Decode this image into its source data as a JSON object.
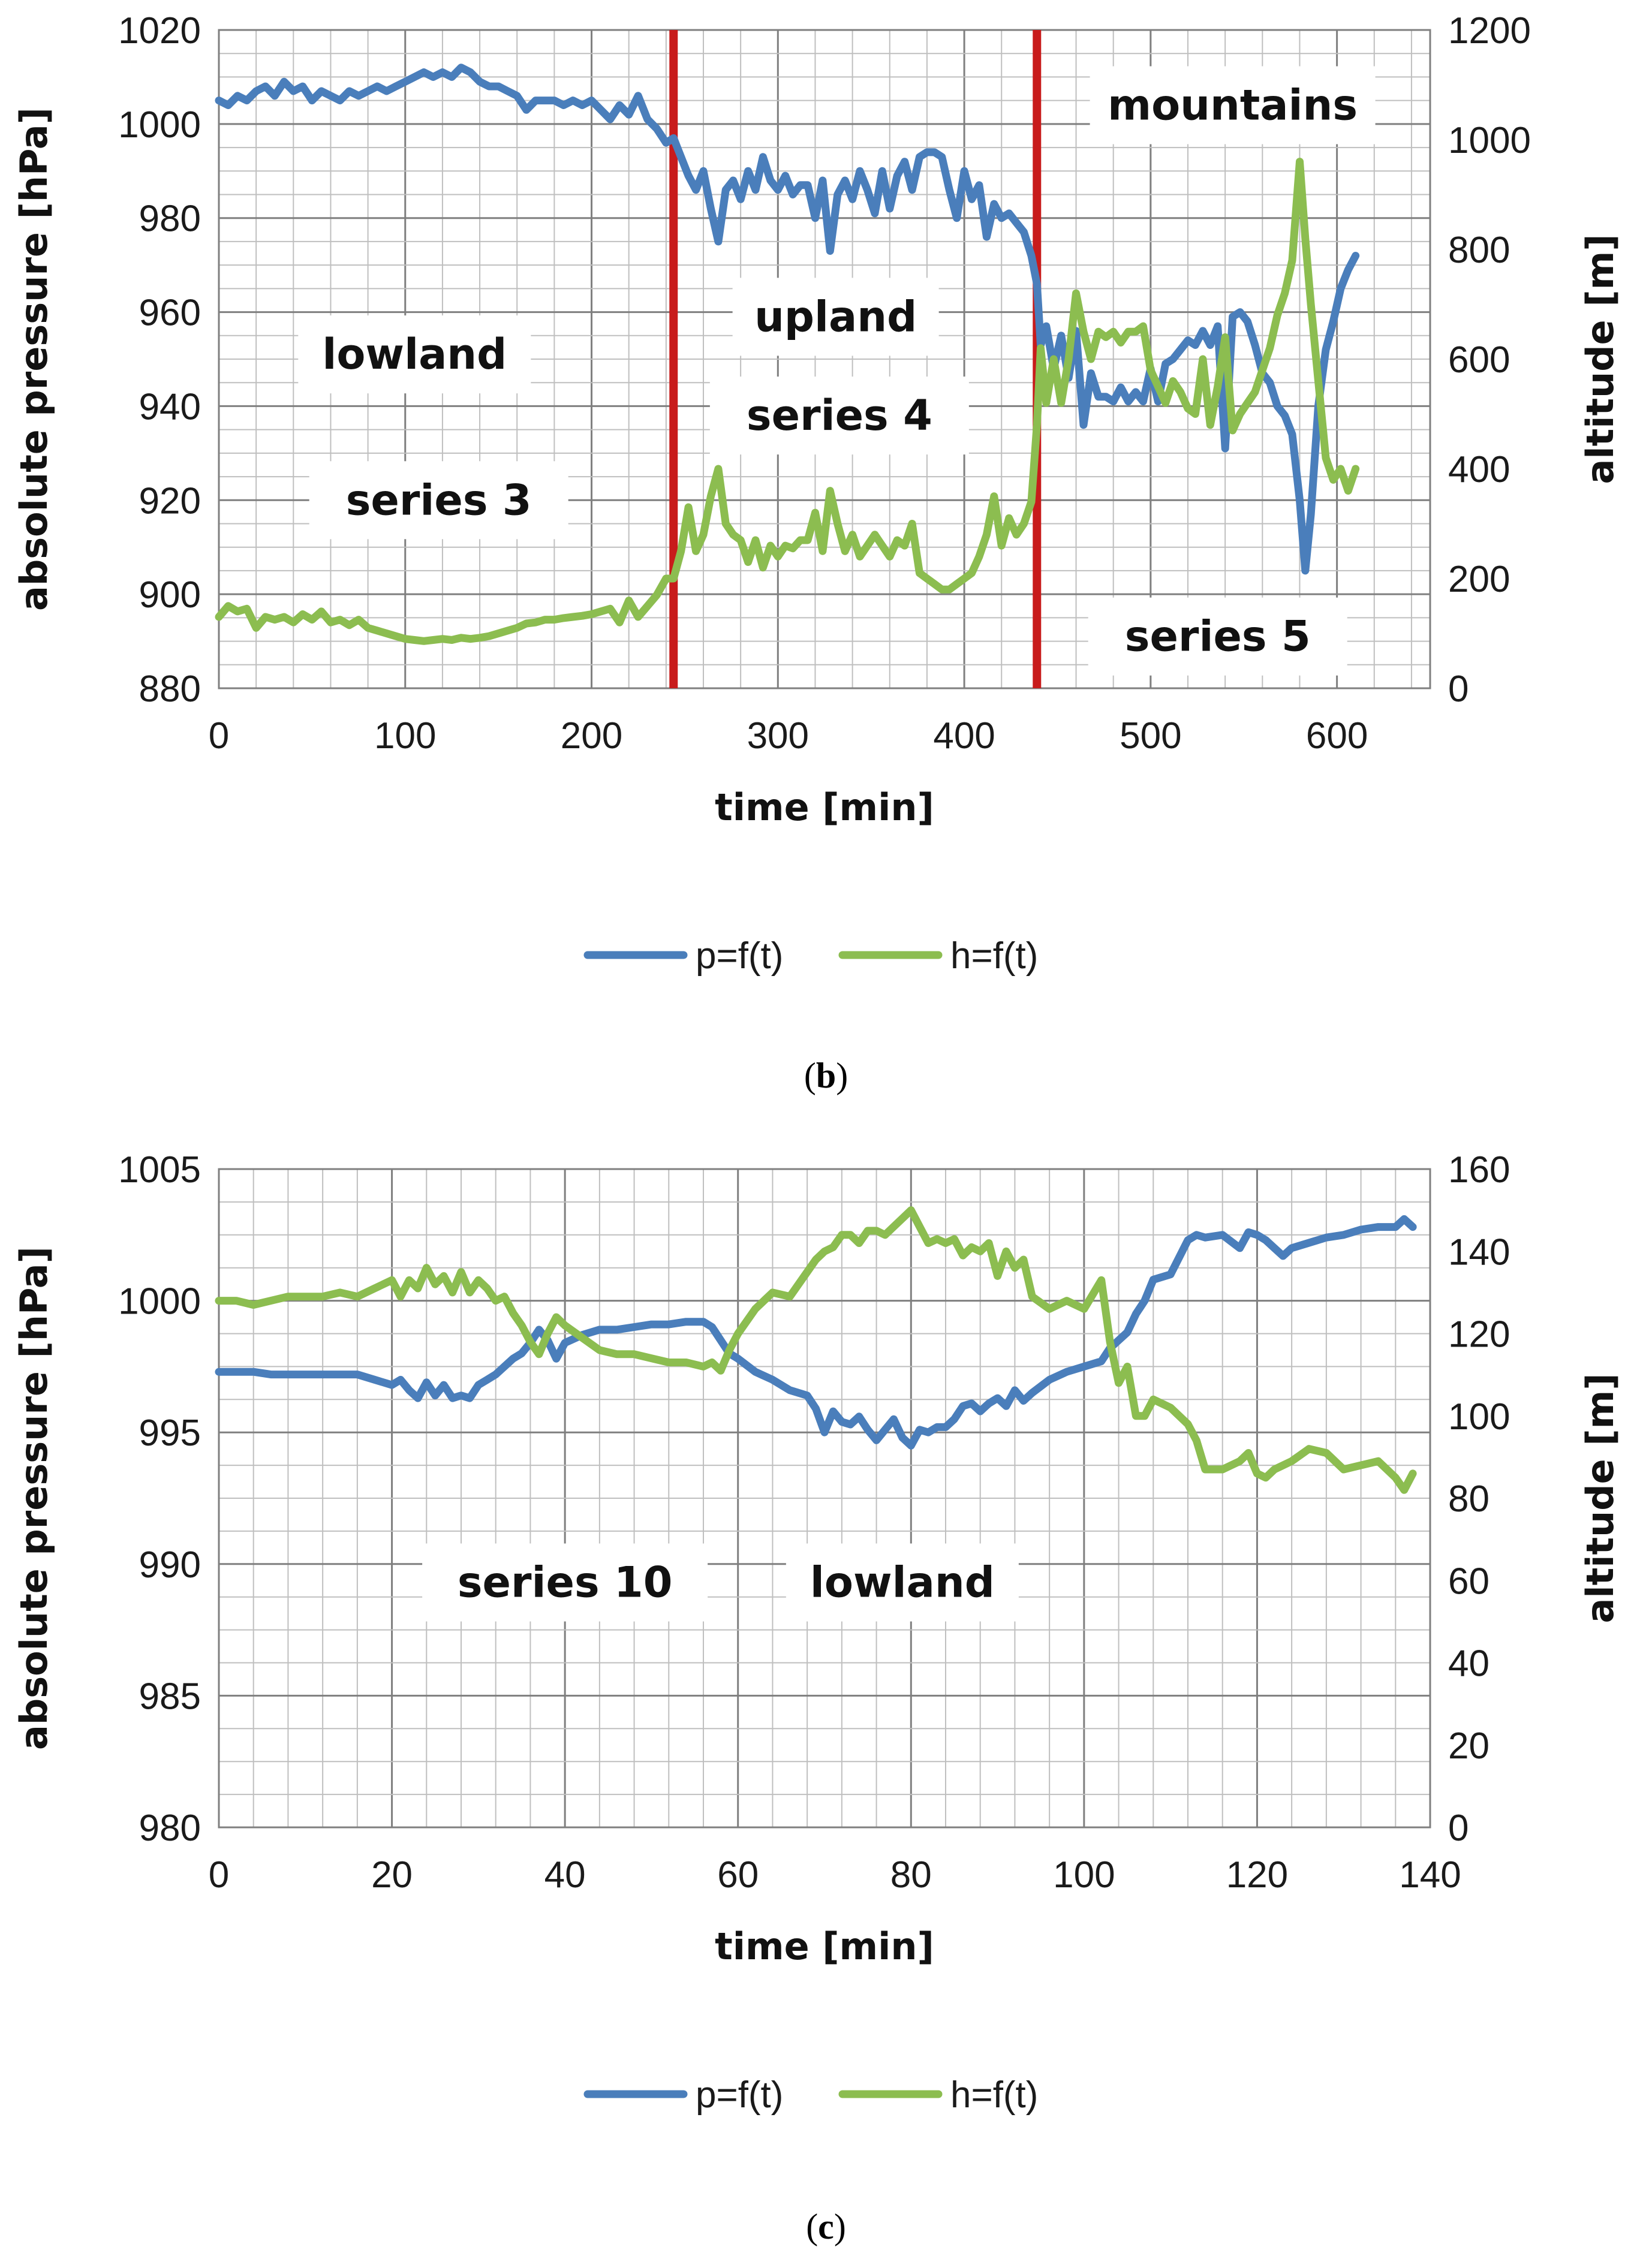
{
  "colors": {
    "pressure": "#4a7ebb",
    "altitude": "#8cbd50",
    "divider": "#c81b1b",
    "grid_major": "#7f7f7f",
    "grid_minor": "#bfbfbf",
    "label_box": "#ffffff"
  },
  "chart_data": [
    {
      "id": "b",
      "type": "line",
      "caption": "b",
      "xlabel": "time [min]",
      "ylabel_left": "absolute pressure [hPa]",
      "ylabel_right": "altitude [m]",
      "xlim": [
        0,
        650
      ],
      "xticks": [
        0,
        100,
        200,
        300,
        400,
        500,
        600
      ],
      "ylim_left": [
        880,
        1020
      ],
      "yticks_left": [
        880,
        900,
        920,
        940,
        960,
        980,
        1000,
        1020
      ],
      "ylim_right": [
        0,
        1200
      ],
      "yticks_right": [
        0,
        200,
        400,
        600,
        800,
        1000,
        1200
      ],
      "grid": true,
      "legend_position": "bottom",
      "dividers_x": [
        244,
        439
      ],
      "annotations": [
        {
          "text": "lowland",
          "x": 105,
          "y": 951
        },
        {
          "text": "series 3",
          "x": 118,
          "y": 920
        },
        {
          "text": "upland",
          "x": 331,
          "y": 959
        },
        {
          "text": "series 4",
          "x": 333,
          "y": 938
        },
        {
          "text": "mountains",
          "x": 544,
          "y": 1004
        },
        {
          "text": "series 5",
          "x": 536,
          "y": 891
        }
      ],
      "series": [
        {
          "name": "p=f(t)",
          "axis": "left",
          "x": [
            0,
            5,
            10,
            15,
            20,
            25,
            30,
            35,
            40,
            45,
            50,
            55,
            60,
            65,
            70,
            75,
            80,
            85,
            90,
            95,
            100,
            105,
            110,
            115,
            120,
            125,
            130,
            135,
            140,
            145,
            150,
            155,
            160,
            165,
            170,
            175,
            180,
            185,
            190,
            195,
            200,
            205,
            210,
            215,
            220,
            225,
            230,
            235,
            240,
            244,
            248,
            252,
            256,
            260,
            264,
            268,
            272,
            276,
            280,
            284,
            288,
            292,
            296,
            300,
            304,
            308,
            312,
            316,
            320,
            324,
            328,
            332,
            336,
            340,
            344,
            348,
            352,
            356,
            360,
            364,
            368,
            372,
            376,
            380,
            384,
            388,
            392,
            396,
            400,
            404,
            408,
            412,
            416,
            420,
            424,
            428,
            432,
            436,
            439,
            441,
            444,
            448,
            452,
            456,
            460,
            464,
            468,
            472,
            476,
            480,
            484,
            488,
            492,
            496,
            500,
            504,
            508,
            512,
            516,
            520,
            524,
            528,
            532,
            536,
            540,
            544,
            548,
            552,
            556,
            560,
            564,
            568,
            572,
            576,
            580,
            583,
            586,
            590,
            594,
            598,
            602,
            606,
            610
          ],
          "y": [
            1005,
            1004,
            1006,
            1005,
            1007,
            1008,
            1006,
            1009,
            1007,
            1008,
            1005,
            1007,
            1006,
            1005,
            1007,
            1006,
            1007,
            1008,
            1007,
            1008,
            1009,
            1010,
            1011,
            1010,
            1011,
            1010,
            1012,
            1011,
            1009,
            1008,
            1008,
            1007,
            1006,
            1003,
            1005,
            1005,
            1005,
            1004,
            1005,
            1004,
            1005,
            1003,
            1001,
            1004,
            1002,
            1006,
            1001,
            999,
            996,
            997,
            993,
            989,
            986,
            990,
            982,
            975,
            986,
            988,
            984,
            990,
            986,
            993,
            988,
            986,
            989,
            985,
            987,
            987,
            980,
            988,
            973,
            985,
            988,
            984,
            990,
            986,
            981,
            990,
            982,
            989,
            992,
            986,
            993,
            994,
            994,
            993,
            986,
            980,
            990,
            984,
            987,
            976,
            983,
            980,
            981,
            979,
            977,
            972,
            966,
            953,
            957,
            948,
            955,
            946,
            956,
            936,
            947,
            942,
            942,
            941,
            944,
            941,
            943,
            941,
            948,
            941,
            949,
            950,
            952,
            954,
            953,
            956,
            953,
            957,
            931,
            959,
            960,
            958,
            953,
            947,
            945,
            940,
            938,
            934,
            920,
            905,
            917,
            940,
            952,
            958,
            965,
            969,
            972
          ]
        },
        {
          "name": "h=f(t)",
          "axis": "right",
          "x": [
            0,
            5,
            10,
            15,
            20,
            25,
            30,
            35,
            40,
            45,
            50,
            55,
            60,
            65,
            70,
            75,
            80,
            85,
            90,
            95,
            100,
            105,
            110,
            115,
            120,
            125,
            130,
            135,
            140,
            145,
            150,
            155,
            160,
            165,
            170,
            175,
            180,
            185,
            190,
            195,
            200,
            205,
            210,
            215,
            220,
            225,
            230,
            235,
            240,
            244,
            248,
            252,
            256,
            260,
            264,
            268,
            272,
            276,
            280,
            284,
            288,
            292,
            296,
            300,
            304,
            308,
            312,
            316,
            320,
            324,
            328,
            332,
            336,
            340,
            344,
            348,
            352,
            356,
            360,
            364,
            368,
            372,
            376,
            380,
            384,
            388,
            392,
            396,
            400,
            404,
            408,
            412,
            416,
            420,
            424,
            428,
            432,
            436,
            439,
            441,
            444,
            448,
            452,
            456,
            460,
            464,
            468,
            472,
            476,
            480,
            484,
            488,
            492,
            496,
            500,
            504,
            508,
            512,
            516,
            520,
            524,
            528,
            532,
            536,
            540,
            544,
            548,
            552,
            556,
            560,
            564,
            568,
            572,
            576,
            580,
            583,
            586,
            590,
            594,
            598,
            602,
            606,
            610
          ],
          "y": [
            130,
            150,
            140,
            145,
            110,
            130,
            125,
            130,
            120,
            135,
            125,
            140,
            120,
            125,
            115,
            125,
            110,
            105,
            100,
            95,
            90,
            88,
            86,
            88,
            90,
            88,
            92,
            90,
            92,
            95,
            100,
            105,
            110,
            118,
            120,
            125,
            125,
            128,
            130,
            132,
            135,
            140,
            145,
            120,
            160,
            130,
            150,
            170,
            200,
            200,
            250,
            330,
            250,
            280,
            350,
            400,
            300,
            280,
            270,
            230,
            270,
            220,
            260,
            240,
            260,
            255,
            270,
            270,
            320,
            250,
            360,
            300,
            250,
            280,
            240,
            260,
            280,
            260,
            240,
            270,
            260,
            300,
            210,
            200,
            190,
            180,
            180,
            190,
            200,
            210,
            240,
            280,
            350,
            260,
            310,
            280,
            300,
            340,
            480,
            620,
            520,
            600,
            520,
            600,
            720,
            650,
            600,
            650,
            640,
            650,
            630,
            650,
            650,
            660,
            580,
            550,
            520,
            560,
            540,
            510,
            500,
            600,
            480,
            550,
            640,
            470,
            500,
            520,
            540,
            580,
            620,
            680,
            720,
            780,
            960,
            820,
            700,
            560,
            420,
            380,
            400,
            360,
            400
          ]
        }
      ]
    },
    {
      "id": "c",
      "type": "line",
      "caption": "c",
      "xlabel": "time [min]",
      "ylabel_left": "absolute pressure [hPa]",
      "ylabel_right": "altitude [m]",
      "xlim": [
        0,
        140
      ],
      "xticks": [
        0,
        20,
        40,
        60,
        80,
        100,
        120,
        140
      ],
      "ylim_left": [
        980,
        1005
      ],
      "yticks_left": [
        980,
        985,
        990,
        995,
        1000,
        1005
      ],
      "ylim_right": [
        0,
        160
      ],
      "yticks_right": [
        0,
        20,
        40,
        60,
        80,
        100,
        120,
        140,
        160
      ],
      "grid": true,
      "legend_position": "bottom",
      "dividers_x": [],
      "annotations": [
        {
          "text": "series 10",
          "x": 40,
          "y": 989.3
        },
        {
          "text": "lowland",
          "x": 79,
          "y": 989.3
        }
      ],
      "series": [
        {
          "name": "p=f(t)",
          "axis": "left",
          "x": [
            0,
            2,
            4,
            6,
            8,
            10,
            12,
            14,
            16,
            18,
            20,
            21,
            22,
            23,
            24,
            25,
            26,
            27,
            28,
            29,
            30,
            31,
            32,
            33,
            34,
            35,
            36,
            37,
            38,
            39,
            40,
            42,
            44,
            46,
            48,
            50,
            52,
            54,
            56,
            57,
            58,
            59,
            60,
            62,
            64,
            66,
            68,
            69,
            70,
            71,
            72,
            73,
            74,
            75,
            76,
            77,
            78,
            79,
            80,
            81,
            82,
            83,
            84,
            85,
            86,
            87,
            88,
            89,
            90,
            91,
            92,
            93,
            94,
            96,
            98,
            100,
            102,
            103,
            104,
            105,
            106,
            107,
            108,
            110,
            112,
            113,
            114,
            116,
            118,
            119,
            120,
            121,
            122,
            123,
            124,
            126,
            128,
            130,
            132,
            134,
            136,
            137,
            138
          ],
          "y": [
            997.3,
            997.3,
            997.3,
            997.2,
            997.2,
            997.2,
            997.2,
            997.2,
            997.2,
            997.0,
            996.8,
            997.0,
            996.6,
            996.3,
            996.9,
            996.4,
            996.8,
            996.3,
            996.4,
            996.3,
            996.8,
            997.0,
            997.2,
            997.5,
            997.8,
            998.0,
            998.4,
            998.9,
            998.5,
            997.8,
            998.4,
            998.7,
            998.9,
            998.9,
            999.0,
            999.1,
            999.1,
            999.2,
            999.2,
            999.0,
            998.5,
            998.0,
            997.8,
            997.3,
            997.0,
            996.6,
            996.4,
            995.9,
            995.0,
            995.8,
            995.4,
            995.3,
            995.6,
            995.1,
            994.7,
            995.1,
            995.5,
            994.8,
            994.5,
            995.1,
            995.0,
            995.2,
            995.2,
            995.5,
            996.0,
            996.1,
            995.8,
            996.1,
            996.3,
            996.0,
            996.6,
            996.2,
            996.5,
            997.0,
            997.3,
            997.5,
            997.7,
            998.2,
            998.5,
            998.8,
            999.5,
            1000.0,
            1000.8,
            1001.0,
            1002.3,
            1002.5,
            1002.4,
            1002.5,
            1002.0,
            1002.6,
            1002.5,
            1002.3,
            1002.0,
            1001.7,
            1002.0,
            1002.2,
            1002.4,
            1002.5,
            1002.7,
            1002.8,
            1002.8,
            1003.1,
            1002.8
          ]
        },
        {
          "name": "h=f(t)",
          "axis": "right",
          "x": [
            0,
            2,
            4,
            6,
            8,
            10,
            12,
            14,
            16,
            18,
            20,
            21,
            22,
            23,
            24,
            25,
            26,
            27,
            28,
            29,
            30,
            31,
            32,
            33,
            34,
            35,
            36,
            37,
            38,
            39,
            40,
            42,
            44,
            46,
            48,
            50,
            52,
            54,
            56,
            57,
            58,
            59,
            60,
            62,
            64,
            66,
            68,
            69,
            70,
            71,
            72,
            73,
            74,
            75,
            76,
            77,
            78,
            79,
            80,
            81,
            82,
            83,
            84,
            85,
            86,
            87,
            88,
            89,
            90,
            91,
            92,
            93,
            94,
            96,
            98,
            100,
            102,
            103,
            104,
            105,
            106,
            107,
            108,
            110,
            112,
            113,
            114,
            116,
            118,
            119,
            120,
            121,
            122,
            123,
            124,
            126,
            128,
            130,
            132,
            134,
            136,
            137,
            138
          ],
          "y": [
            128,
            128,
            127,
            128,
            129,
            129,
            129,
            130,
            129,
            131,
            133,
            129,
            133,
            131,
            136,
            132,
            134,
            130,
            135,
            130,
            133,
            131,
            128,
            129,
            125,
            122,
            118,
            115,
            120,
            124,
            122,
            119,
            116,
            115,
            115,
            114,
            113,
            113,
            112,
            113,
            111,
            116,
            120,
            126,
            130,
            129,
            135,
            138,
            140,
            141,
            144,
            144,
            142,
            145,
            145,
            144,
            146,
            148,
            150,
            146,
            142,
            143,
            142,
            143,
            139,
            141,
            140,
            142,
            134,
            140,
            136,
            138,
            129,
            126,
            128,
            126,
            133,
            118,
            108,
            112,
            100,
            100,
            104,
            102,
            98,
            94,
            87,
            87,
            89,
            91,
            86,
            85,
            87,
            88,
            89,
            92,
            91,
            87,
            88,
            89,
            85,
            82,
            86
          ]
        }
      ]
    }
  ]
}
